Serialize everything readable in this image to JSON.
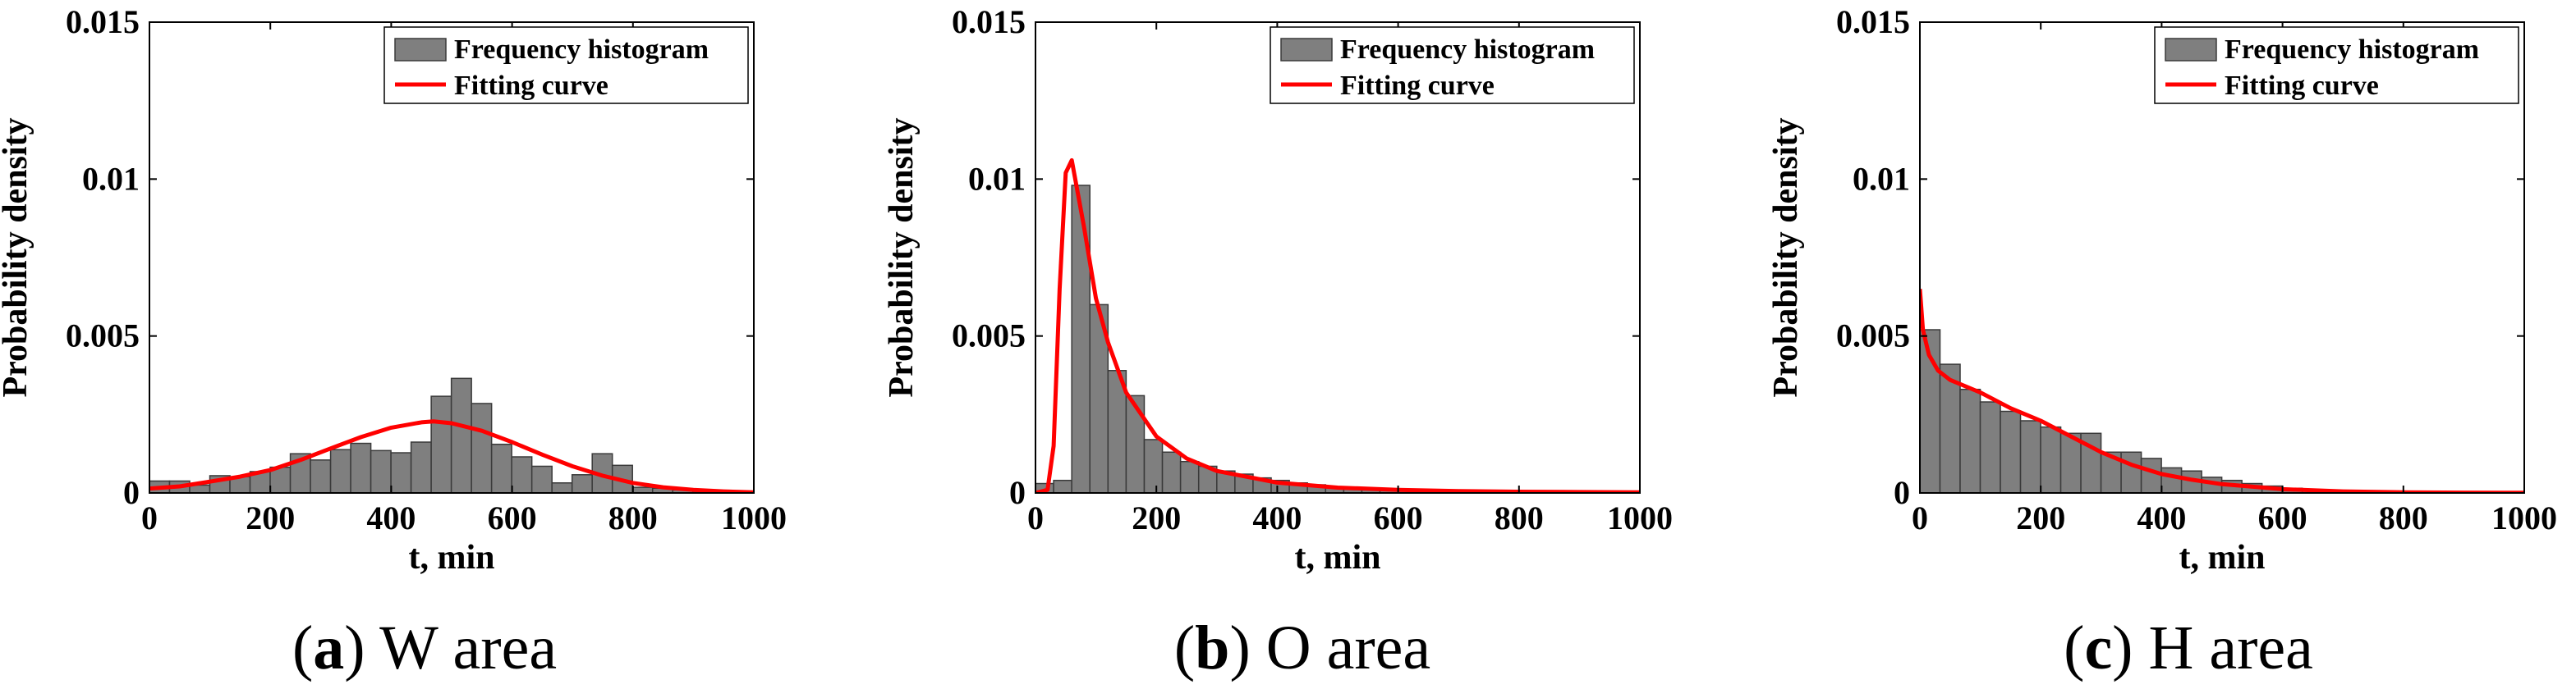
{
  "chart_data": [
    {
      "type": "histogram",
      "panel_letter": "a",
      "caption": "W area",
      "xlabel": "t, min",
      "ylabel": "Probability density",
      "xlim": [
        0,
        1000
      ],
      "ylim": [
        0,
        0.015
      ],
      "xticks": [
        "0",
        "200",
        "400",
        "600",
        "800",
        "1000"
      ],
      "yticks": [
        "0",
        "0.005",
        "0.01",
        "0.015"
      ],
      "legend": [
        "Frequency histogram",
        "Fitting curve"
      ],
      "legend_position": "top-right",
      "bin_width": 33.3,
      "bin_start": 0,
      "histogram_values": [
        0.00038,
        0.00038,
        0.00025,
        0.00055,
        0.00052,
        0.00068,
        0.00082,
        0.00125,
        0.00105,
        0.00138,
        0.00158,
        0.00135,
        0.00128,
        0.00162,
        0.00308,
        0.00365,
        0.00285,
        0.00155,
        0.00115,
        0.00085,
        0.00032,
        0.00058,
        0.00125,
        0.00088,
        0.00018,
        0.00015,
        0.0001,
        5e-05,
        3e-05,
        2e-05
      ],
      "fitting_curve": {
        "x": [
          0,
          50,
          100,
          150,
          200,
          250,
          300,
          350,
          400,
          450,
          470,
          500,
          550,
          600,
          650,
          700,
          750,
          800,
          850,
          900,
          950,
          1000
        ],
        "y": [
          0.00014,
          0.00021,
          0.00036,
          0.00052,
          0.00073,
          0.00105,
          0.00142,
          0.00178,
          0.00208,
          0.00225,
          0.00228,
          0.00222,
          0.00198,
          0.00162,
          0.00122,
          0.00085,
          0.00055,
          0.00032,
          0.00018,
          0.0001,
          5e-05,
          2e-05
        ]
      },
      "colors": {
        "bar": "#7f7f7f",
        "curve": "#ff0000"
      }
    },
    {
      "type": "histogram",
      "panel_letter": "b",
      "caption": "O area",
      "xlabel": "t, min",
      "ylabel": "Probability density",
      "xlim": [
        0,
        1000
      ],
      "ylim": [
        0,
        0.015
      ],
      "xticks": [
        "0",
        "200",
        "400",
        "600",
        "800",
        "1000"
      ],
      "yticks": [
        "0",
        "0.005",
        "0.01",
        "0.015"
      ],
      "legend": [
        "Frequency histogram",
        "Fitting curve"
      ],
      "legend_position": "top-right",
      "bin_width": 30,
      "bin_start": 0,
      "histogram_values": [
        0.0003,
        0.0004,
        0.0098,
        0.006,
        0.0039,
        0.0031,
        0.0017,
        0.0013,
        0.001,
        0.00085,
        0.0007,
        0.0006,
        0.00048,
        0.0004,
        0.00032,
        0.00026,
        0.0002,
        0.00016,
        0.00013,
        0.0001,
        8e-05,
        6e-05,
        5e-05,
        4e-05,
        3e-05,
        3e-05,
        2e-05,
        2e-05,
        1e-05,
        1e-05,
        1e-05,
        1e-05,
        1e-05
      ],
      "fitting_curve": {
        "x": [
          0,
          20,
          30,
          40,
          50,
          60,
          80,
          100,
          120,
          150,
          200,
          250,
          300,
          400,
          500,
          600,
          700,
          800,
          900,
          1000
        ],
        "y": [
          0,
          0.0001,
          0.0015,
          0.0065,
          0.0102,
          0.0106,
          0.0085,
          0.0062,
          0.0048,
          0.0032,
          0.0018,
          0.0011,
          0.0007,
          0.00033,
          0.00017,
          0.0001,
          6e-05,
          4e-05,
          3e-05,
          2e-05
        ]
      },
      "colors": {
        "bar": "#7f7f7f",
        "curve": "#ff0000"
      }
    },
    {
      "type": "histogram",
      "panel_letter": "c",
      "caption": "H area",
      "xlabel": "t, min",
      "ylabel": "Probability density",
      "xlim": [
        0,
        1000
      ],
      "ylim": [
        0,
        0.015
      ],
      "xticks": [
        "0",
        "200",
        "400",
        "600",
        "800",
        "1000"
      ],
      "yticks": [
        "0",
        "0.005",
        "0.01",
        "0.015"
      ],
      "legend": [
        "Frequency histogram",
        "Fitting curve"
      ],
      "legend_position": "top-right",
      "bin_width": 33.3,
      "bin_start": 0,
      "histogram_values": [
        0.0052,
        0.0041,
        0.0033,
        0.0029,
        0.0026,
        0.0023,
        0.0021,
        0.0019,
        0.0019,
        0.0013,
        0.0013,
        0.0011,
        0.0008,
        0.0007,
        0.0005,
        0.0004,
        0.0003,
        0.00022,
        0.00015,
        0.0001,
        8e-05,
        6e-05,
        4e-05,
        3e-05,
        2e-05,
        1e-05,
        1e-05,
        1e-05,
        1e-05,
        1e-05
      ],
      "fitting_curve": {
        "x": [
          0,
          5,
          15,
          30,
          50,
          100,
          150,
          200,
          250,
          300,
          350,
          400,
          450,
          500,
          600,
          700,
          800,
          900,
          1000
        ],
        "y": [
          0.0065,
          0.0052,
          0.0044,
          0.0039,
          0.0036,
          0.0032,
          0.0027,
          0.0023,
          0.0018,
          0.0013,
          0.0009,
          0.0006,
          0.00042,
          0.00028,
          0.00012,
          5e-05,
          2e-05,
          1e-05,
          5e-06
        ]
      },
      "colors": {
        "bar": "#7f7f7f",
        "curve": "#ff0000"
      }
    }
  ]
}
